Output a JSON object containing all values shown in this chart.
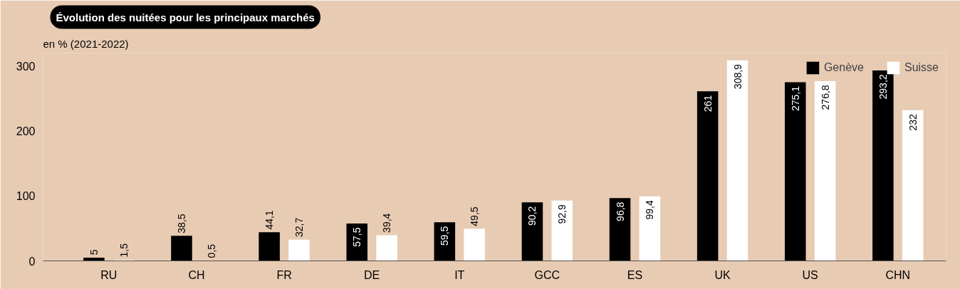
{
  "chart_data": {
    "type": "bar",
    "title": "Évolution des nuitées pour les principaux marchés",
    "subtitle": "en % (2021-2022)",
    "categories": [
      "RU",
      "CH",
      "FR",
      "DE",
      "IT",
      "GCC",
      "ES",
      "UK",
      "US",
      "CHN"
    ],
    "series": [
      {
        "name": "Genève",
        "color": "#000000",
        "values": [
          5,
          38.5,
          44.1,
          57.5,
          59.5,
          90.2,
          96.8,
          261,
          275.1,
          293.2
        ],
        "value_labels": [
          "5",
          "38,5",
          "44,1",
          "57,5",
          "59,5",
          "90,2",
          "96,8",
          "261",
          "275,1",
          "293,2"
        ]
      },
      {
        "name": "Suisse",
        "color": "#ffffff",
        "values": [
          1.5,
          0.5,
          32.7,
          39.4,
          49.5,
          92.9,
          99.4,
          308.9,
          276.8,
          232
        ],
        "value_labels": [
          "1,5",
          "0,5",
          "32,7",
          "39,4",
          "49,5",
          "92,9",
          "99,4",
          "308,9",
          "276,8",
          "232"
        ]
      }
    ],
    "ylim": [
      0,
      320
    ],
    "yticks": [
      0,
      100,
      200,
      300
    ],
    "grid": false,
    "legend": "top right"
  }
}
